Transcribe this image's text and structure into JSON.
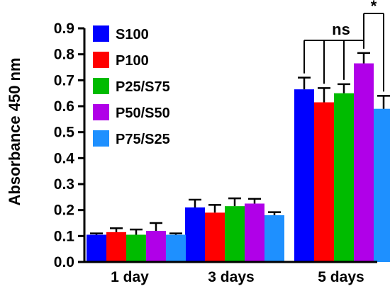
{
  "chart_data": {
    "type": "bar",
    "title": "",
    "xlabel": "",
    "ylabel": "Absorbance 450 nm",
    "ylim": [
      0,
      0.9
    ],
    "yticks": [
      "0.0",
      "0.1",
      "0.2",
      "0.3",
      "0.4",
      "0.5",
      "0.6",
      "0.7",
      "0.8",
      "0.9"
    ],
    "categories": [
      "1 day",
      "3 days",
      "5 days"
    ],
    "legend_position": "top-left",
    "grid": false,
    "series": [
      {
        "name": "S100",
        "color": "#0000ff",
        "values": [
          0.105,
          0.21,
          0.665
        ],
        "errors": [
          0.005,
          0.03,
          0.045
        ]
      },
      {
        "name": "P100",
        "color": "#ff0000",
        "values": [
          0.115,
          0.19,
          0.615
        ],
        "errors": [
          0.015,
          0.03,
          0.055
        ]
      },
      {
        "name": "P25/S75",
        "color": "#00bb00",
        "values": [
          0.105,
          0.215,
          0.65
        ],
        "errors": [
          0.02,
          0.03,
          0.035
        ]
      },
      {
        "name": "P50/S50",
        "color": "#b000e8",
        "values": [
          0.12,
          0.225,
          0.765
        ],
        "errors": [
          0.03,
          0.018,
          0.04
        ]
      },
      {
        "name": "P75/S25",
        "color": "#1e90ff",
        "values": [
          0.105,
          0.18,
          0.59
        ],
        "errors": [
          0.005,
          0.012,
          0.05
        ]
      }
    ],
    "annotations": [
      {
        "text": "ns",
        "category": "5 days"
      },
      {
        "text": "*",
        "category": "5 days"
      }
    ]
  }
}
